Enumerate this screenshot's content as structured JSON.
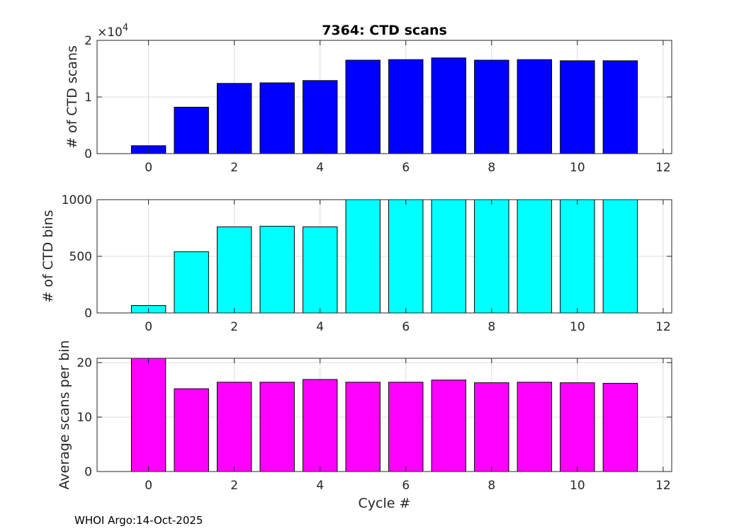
{
  "figure": {
    "footer": "WHOI Argo:14-Oct-2025"
  },
  "colors": {
    "scans": "#0000ff",
    "bins": "#00ffff",
    "avg": "#ff00ff",
    "axis": "#262626",
    "grid": "#dcdcdc"
  },
  "chart_data": [
    {
      "id": "scans",
      "type": "bar",
      "title": "7364: CTD scans",
      "xlabel": "",
      "ylabel": "# of CTD scans",
      "exponent_label": "×10",
      "exponent_power": "4",
      "x": [
        0,
        1,
        2,
        3,
        4,
        5,
        6,
        7,
        8,
        9,
        10,
        11
      ],
      "values": [
        1400,
        8200,
        12400,
        12500,
        12900,
        16500,
        16600,
        16900,
        16500,
        16600,
        16400,
        16400
      ],
      "display_scale": 10000,
      "xlim": [
        -1.2,
        12.2
      ],
      "ylim": [
        0,
        20000
      ],
      "xticks": [
        0,
        2,
        4,
        6,
        8,
        10,
        12
      ],
      "xtick_labels": [
        "0",
        "2",
        "4",
        "6",
        "8",
        "10",
        "12"
      ],
      "yticks": [
        0,
        10000,
        20000
      ],
      "ytick_labels": [
        "0",
        "1",
        "2"
      ],
      "grid": true
    },
    {
      "id": "bins",
      "type": "bar",
      "title": "",
      "xlabel": "",
      "ylabel": "# of CTD bins",
      "x": [
        0,
        1,
        2,
        3,
        4,
        5,
        6,
        7,
        8,
        9,
        10,
        11
      ],
      "values": [
        65,
        540,
        760,
        765,
        760,
        1000,
        1000,
        1000,
        1000,
        1000,
        1000,
        1000
      ],
      "xlim": [
        -1.2,
        12.2
      ],
      "ylim": [
        0,
        1000
      ],
      "xticks": [
        0,
        2,
        4,
        6,
        8,
        10,
        12
      ],
      "xtick_labels": [
        "0",
        "2",
        "4",
        "6",
        "8",
        "10",
        "12"
      ],
      "yticks": [
        0,
        500,
        1000
      ],
      "ytick_labels": [
        "0",
        "500",
        "1000"
      ],
      "grid": true
    },
    {
      "id": "avg",
      "type": "bar",
      "title": "",
      "xlabel": "Cycle #",
      "ylabel": "Average scans per bin",
      "x": [
        0,
        1,
        2,
        3,
        4,
        5,
        6,
        7,
        8,
        9,
        10,
        11
      ],
      "values": [
        20.8,
        15.2,
        16.4,
        16.4,
        16.9,
        16.4,
        16.4,
        16.8,
        16.3,
        16.4,
        16.3,
        16.2
      ],
      "xlim": [
        -1.2,
        12.2
      ],
      "ylim": [
        0,
        20.8
      ],
      "xticks": [
        0,
        2,
        4,
        6,
        8,
        10,
        12
      ],
      "xtick_labels": [
        "0",
        "2",
        "4",
        "6",
        "8",
        "10",
        "12"
      ],
      "yticks": [
        0,
        10,
        20
      ],
      "ytick_labels": [
        "0",
        "10",
        "20"
      ],
      "grid": true
    }
  ]
}
